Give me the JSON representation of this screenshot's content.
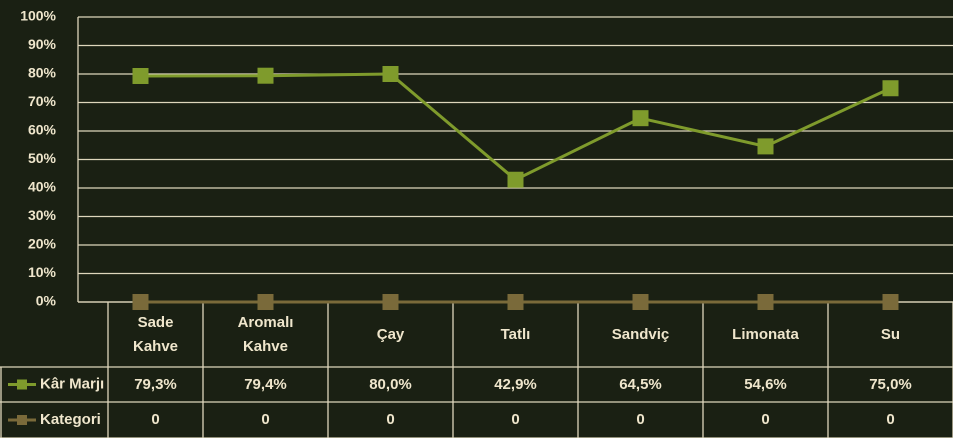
{
  "chart_data": {
    "type": "line",
    "categories": [
      "Sade Kahve",
      "Aromalı Kahve",
      "Çay",
      "Tatlı",
      "Sandviç",
      "Limonata",
      "Su"
    ],
    "series": [
      {
        "name": "Kâr Marjı",
        "color": "#7f9b2c",
        "values": [
          79.3,
          79.4,
          80.0,
          42.9,
          64.5,
          54.6,
          75.0
        ],
        "value_labels": [
          "79,3%",
          "79,4%",
          "80,0%",
          "42,9%",
          "64,5%",
          "54,6%",
          "75,0%"
        ]
      },
      {
        "name": "Kategori",
        "color": "#7a6a3a",
        "values": [
          0,
          0,
          0,
          0,
          0,
          0,
          0
        ]
      }
    ],
    "ylim": [
      0,
      100
    ],
    "yticks": [
      {
        "value": 0,
        "label": "0%"
      },
      {
        "value": 10,
        "label": "10%"
      },
      {
        "value": 20,
        "label": "20%"
      },
      {
        "value": 30,
        "label": "30%"
      },
      {
        "value": 40,
        "label": "40%"
      },
      {
        "value": 50,
        "label": "50%"
      },
      {
        "value": 60,
        "label": "60%"
      },
      {
        "value": 70,
        "label": "70%"
      },
      {
        "value": 80,
        "label": "80%"
      },
      {
        "value": 90,
        "label": "90%"
      },
      {
        "value": 100,
        "label": "100%"
      }
    ],
    "grid": true
  }
}
